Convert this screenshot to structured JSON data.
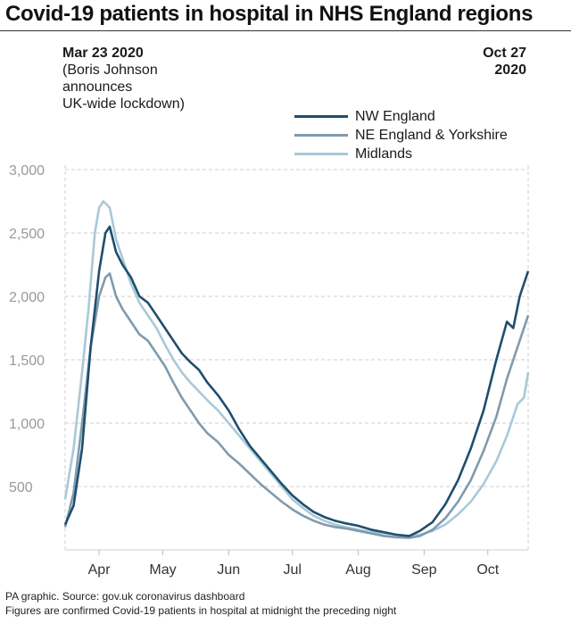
{
  "title": "Covid-19 patients in hospital in NHS England regions",
  "annotations": {
    "start_date": "Mar 23 2020",
    "start_note": "(Boris Johnson\nannounces\nUK-wide lockdown)",
    "end_date": "Oct 27\n2020"
  },
  "footer": {
    "source": "PA graphic. Source: gov.uk coronavirus dashboard",
    "note": "Figures are confirmed Covid-19 patients in hospital at midnight the preceding night"
  },
  "chart_data": {
    "type": "line",
    "title": "Covid-19 patients in hospital in NHS England regions",
    "xlabel": "",
    "ylabel": "",
    "x_start": "2020-03-23",
    "x_end": "2020-10-27",
    "xlim": [
      "2020-03-23",
      "2020-10-27"
    ],
    "ylim": [
      0,
      3000
    ],
    "y_ticks": [
      500,
      1000,
      1500,
      2000,
      2500,
      3000
    ],
    "y_tick_labels": [
      "500",
      "1,000",
      "1,500",
      "2,000",
      "2,500",
      "3,000"
    ],
    "x_ticks": [
      {
        "label": "Apr",
        "date": "2020-04-08"
      },
      {
        "label": "May",
        "date": "2020-05-08"
      },
      {
        "label": "Jun",
        "date": "2020-06-08"
      },
      {
        "label": "Jul",
        "date": "2020-07-08"
      },
      {
        "label": "Aug",
        "date": "2020-08-08"
      },
      {
        "label": "Sep",
        "date": "2020-09-08"
      },
      {
        "label": "Oct",
        "date": "2020-10-08"
      }
    ],
    "grid": true,
    "legend_position": "top-right",
    "series": [
      {
        "name": "NW England",
        "color": "#1f4e6e",
        "points": [
          [
            "2020-03-23",
            200
          ],
          [
            "2020-03-27",
            350
          ],
          [
            "2020-03-31",
            800
          ],
          [
            "2020-04-04",
            1600
          ],
          [
            "2020-04-08",
            2200
          ],
          [
            "2020-04-11",
            2500
          ],
          [
            "2020-04-13",
            2550
          ],
          [
            "2020-04-16",
            2350
          ],
          [
            "2020-04-19",
            2250
          ],
          [
            "2020-04-23",
            2150
          ],
          [
            "2020-04-27",
            2000
          ],
          [
            "2020-05-01",
            1950
          ],
          [
            "2020-05-05",
            1850
          ],
          [
            "2020-05-09",
            1750
          ],
          [
            "2020-05-13",
            1650
          ],
          [
            "2020-05-17",
            1550
          ],
          [
            "2020-05-21",
            1480
          ],
          [
            "2020-05-25",
            1420
          ],
          [
            "2020-05-29",
            1320
          ],
          [
            "2020-06-03",
            1220
          ],
          [
            "2020-06-08",
            1100
          ],
          [
            "2020-06-13",
            950
          ],
          [
            "2020-06-18",
            820
          ],
          [
            "2020-06-23",
            720
          ],
          [
            "2020-06-28",
            620
          ],
          [
            "2020-07-03",
            520
          ],
          [
            "2020-07-08",
            430
          ],
          [
            "2020-07-13",
            360
          ],
          [
            "2020-07-18",
            300
          ],
          [
            "2020-07-23",
            260
          ],
          [
            "2020-07-28",
            230
          ],
          [
            "2020-08-02",
            210
          ],
          [
            "2020-08-08",
            190
          ],
          [
            "2020-08-14",
            160
          ],
          [
            "2020-08-20",
            140
          ],
          [
            "2020-08-26",
            120
          ],
          [
            "2020-09-01",
            110
          ],
          [
            "2020-09-06",
            150
          ],
          [
            "2020-09-12",
            220
          ],
          [
            "2020-09-18",
            360
          ],
          [
            "2020-09-24",
            550
          ],
          [
            "2020-09-30",
            800
          ],
          [
            "2020-10-06",
            1100
          ],
          [
            "2020-10-12",
            1500
          ],
          [
            "2020-10-17",
            1800
          ],
          [
            "2020-10-20",
            1750
          ],
          [
            "2020-10-23",
            2000
          ],
          [
            "2020-10-27",
            2200
          ]
        ]
      },
      {
        "name": "NE England & Yorkshire",
        "color": "#7f9bad",
        "points": [
          [
            "2020-03-23",
            180
          ],
          [
            "2020-03-27",
            450
          ],
          [
            "2020-03-31",
            1000
          ],
          [
            "2020-04-04",
            1600
          ],
          [
            "2020-04-08",
            2000
          ],
          [
            "2020-04-11",
            2150
          ],
          [
            "2020-04-13",
            2180
          ],
          [
            "2020-04-16",
            2000
          ],
          [
            "2020-04-19",
            1900
          ],
          [
            "2020-04-23",
            1800
          ],
          [
            "2020-04-27",
            1700
          ],
          [
            "2020-05-01",
            1650
          ],
          [
            "2020-05-05",
            1550
          ],
          [
            "2020-05-09",
            1450
          ],
          [
            "2020-05-13",
            1320
          ],
          [
            "2020-05-17",
            1200
          ],
          [
            "2020-05-21",
            1100
          ],
          [
            "2020-05-25",
            1000
          ],
          [
            "2020-05-29",
            920
          ],
          [
            "2020-06-03",
            850
          ],
          [
            "2020-06-08",
            750
          ],
          [
            "2020-06-13",
            680
          ],
          [
            "2020-06-18",
            600
          ],
          [
            "2020-06-23",
            520
          ],
          [
            "2020-06-28",
            450
          ],
          [
            "2020-07-03",
            380
          ],
          [
            "2020-07-08",
            320
          ],
          [
            "2020-07-13",
            270
          ],
          [
            "2020-07-18",
            230
          ],
          [
            "2020-07-23",
            200
          ],
          [
            "2020-07-28",
            180
          ],
          [
            "2020-08-02",
            170
          ],
          [
            "2020-08-08",
            150
          ],
          [
            "2020-08-14",
            130
          ],
          [
            "2020-08-20",
            110
          ],
          [
            "2020-08-26",
            100
          ],
          [
            "2020-09-01",
            95
          ],
          [
            "2020-09-06",
            110
          ],
          [
            "2020-09-12",
            160
          ],
          [
            "2020-09-18",
            250
          ],
          [
            "2020-09-24",
            380
          ],
          [
            "2020-09-30",
            550
          ],
          [
            "2020-10-06",
            780
          ],
          [
            "2020-10-12",
            1050
          ],
          [
            "2020-10-17",
            1350
          ],
          [
            "2020-10-21",
            1550
          ],
          [
            "2020-10-24",
            1700
          ],
          [
            "2020-10-27",
            1850
          ]
        ]
      },
      {
        "name": "Midlands",
        "color": "#aac8d8",
        "points": [
          [
            "2020-03-23",
            400
          ],
          [
            "2020-03-27",
            800
          ],
          [
            "2020-03-31",
            1400
          ],
          [
            "2020-04-03",
            1900
          ],
          [
            "2020-04-06",
            2500
          ],
          [
            "2020-04-08",
            2700
          ],
          [
            "2020-04-10",
            2750
          ],
          [
            "2020-04-13",
            2700
          ],
          [
            "2020-04-16",
            2450
          ],
          [
            "2020-04-19",
            2300
          ],
          [
            "2020-04-23",
            2100
          ],
          [
            "2020-04-27",
            1950
          ],
          [
            "2020-05-01",
            1850
          ],
          [
            "2020-05-05",
            1750
          ],
          [
            "2020-05-09",
            1620
          ],
          [
            "2020-05-13",
            1500
          ],
          [
            "2020-05-17",
            1400
          ],
          [
            "2020-05-21",
            1320
          ],
          [
            "2020-05-25",
            1250
          ],
          [
            "2020-05-29",
            1180
          ],
          [
            "2020-06-03",
            1100
          ],
          [
            "2020-06-08",
            1000
          ],
          [
            "2020-06-13",
            900
          ],
          [
            "2020-06-18",
            800
          ],
          [
            "2020-06-23",
            700
          ],
          [
            "2020-06-28",
            600
          ],
          [
            "2020-07-03",
            500
          ],
          [
            "2020-07-08",
            400
          ],
          [
            "2020-07-13",
            330
          ],
          [
            "2020-07-18",
            270
          ],
          [
            "2020-07-23",
            230
          ],
          [
            "2020-07-28",
            200
          ],
          [
            "2020-08-02",
            180
          ],
          [
            "2020-08-08",
            160
          ],
          [
            "2020-08-14",
            140
          ],
          [
            "2020-08-20",
            130
          ],
          [
            "2020-08-26",
            120
          ],
          [
            "2020-09-01",
            110
          ],
          [
            "2020-09-06",
            120
          ],
          [
            "2020-09-12",
            150
          ],
          [
            "2020-09-18",
            200
          ],
          [
            "2020-09-24",
            280
          ],
          [
            "2020-09-30",
            380
          ],
          [
            "2020-10-06",
            520
          ],
          [
            "2020-10-12",
            700
          ],
          [
            "2020-10-17",
            900
          ],
          [
            "2020-10-22",
            1150
          ],
          [
            "2020-10-25",
            1200
          ],
          [
            "2020-10-27",
            1400
          ]
        ]
      }
    ]
  }
}
